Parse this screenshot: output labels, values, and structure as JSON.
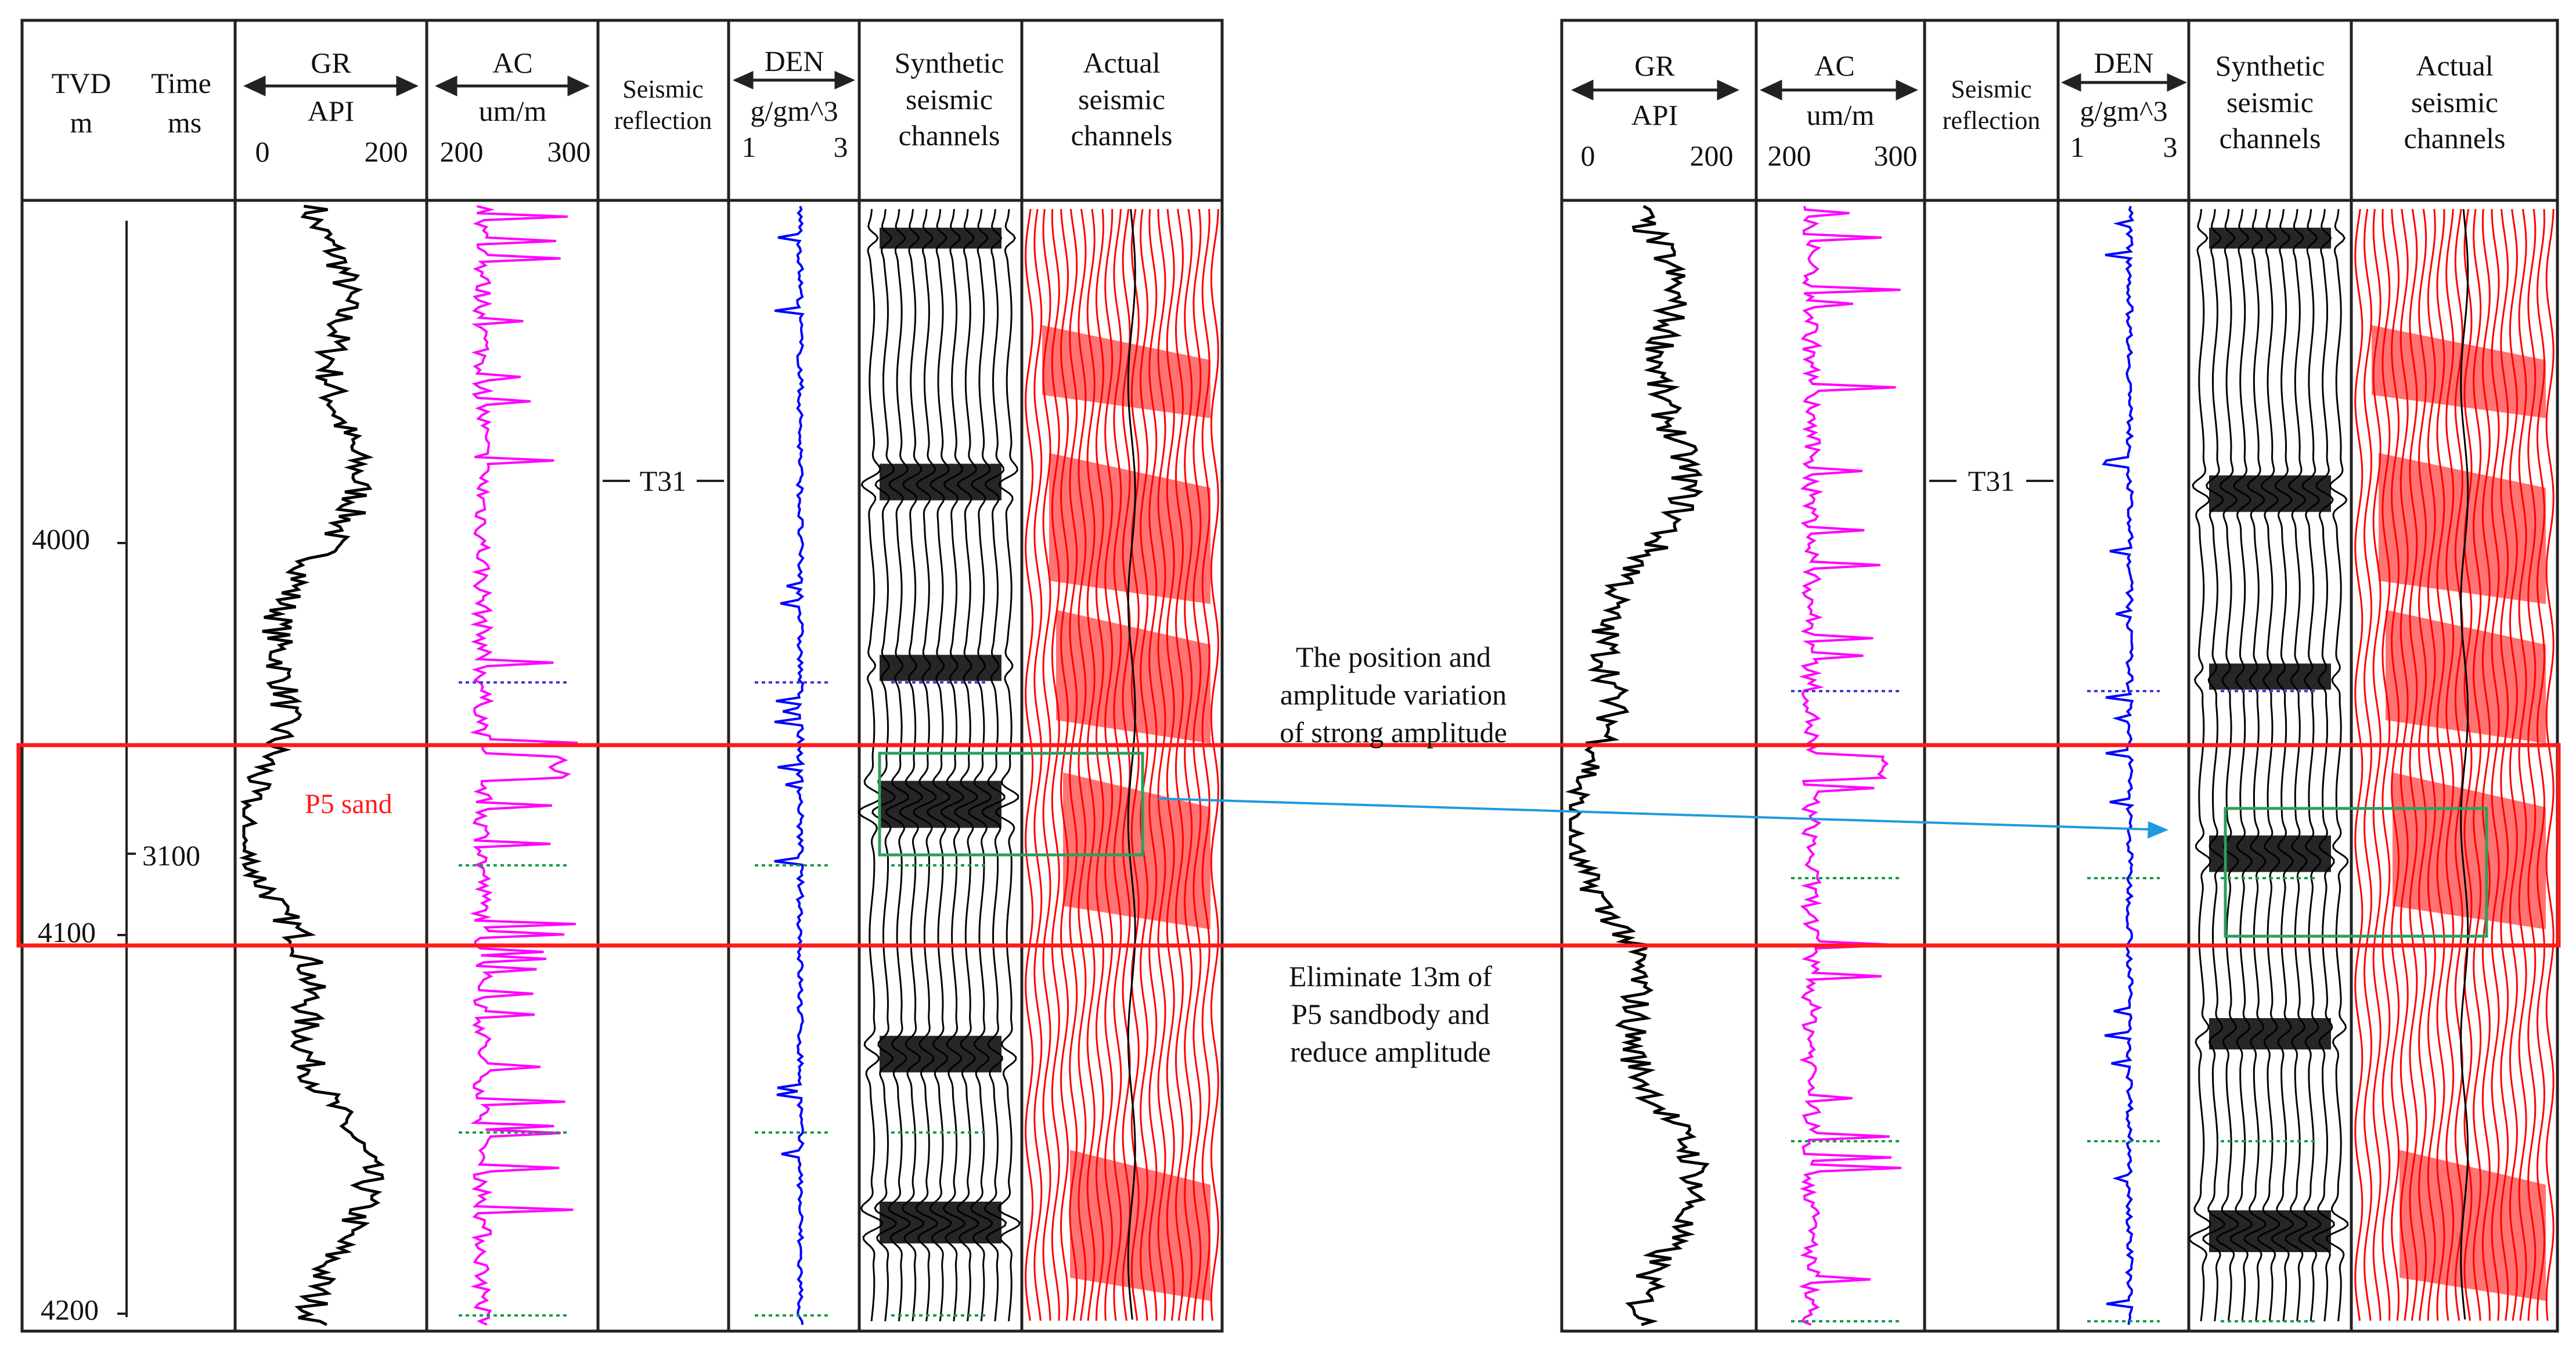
{
  "panels": [
    {
      "id": "before",
      "headers": {
        "tvd": "TVD",
        "tvd_unit": "m",
        "time": "Time",
        "time_unit": "ms",
        "gr": "GR",
        "gr_unit": "API",
        "gr_min": "0",
        "gr_max": "200",
        "ac": "AC",
        "ac_unit": "um/m",
        "ac_min": "200",
        "ac_max": "300",
        "seismic_reflection_1": "Seismic",
        "seismic_reflection_2": "reflection",
        "den": "DEN",
        "den_unit": "g/gm^3",
        "den_min": "1",
        "den_max": "3",
        "synthetic_1": "Synthetic",
        "synthetic_2": "seismic",
        "synthetic_3": "channels",
        "actual_1": "Actual",
        "actual_2": "seismic",
        "actual_3": "channels"
      },
      "horizon_label": "T31",
      "sand_label": "P5 sand"
    },
    {
      "id": "after",
      "headers": {
        "gr": "GR",
        "gr_unit": "API",
        "gr_min": "0",
        "gr_max": "200",
        "ac": "AC",
        "ac_unit": "um/m",
        "ac_min": "200",
        "ac_max": "300",
        "seismic_reflection_1": "Seismic",
        "seismic_reflection_2": "reflection",
        "den": "DEN",
        "den_unit": "g/gm^3",
        "den_min": "1",
        "den_max": "3",
        "synthetic_1": "Synthetic",
        "synthetic_2": "seismic",
        "synthetic_3": "channels",
        "actual_1": "Actual",
        "actual_2": "seismic",
        "actual_3": "channels"
      },
      "horizon_label": "T31"
    }
  ],
  "depth_ticks": [
    "4000",
    "4100",
    "4200"
  ],
  "time_ticks": [
    "3100"
  ],
  "annotations": {
    "top_1": "The position and",
    "top_2": "amplitude variation",
    "top_3": "of strong amplitude",
    "bottom_1": "Eliminate 13m of",
    "bottom_2": "P5 sandbody and",
    "bottom_3": "reduce amplitude"
  },
  "colors": {
    "gr": "#000000",
    "ac": "#ff00ff",
    "den": "#0000ff",
    "actual_trace": "#ff0000",
    "sand_box": "#ff0000",
    "amp_box": "#2e9e5b",
    "arrow": "#1e9be0",
    "marker_blue": "#3b3bd6",
    "marker_green": "#1a9a4a"
  }
}
